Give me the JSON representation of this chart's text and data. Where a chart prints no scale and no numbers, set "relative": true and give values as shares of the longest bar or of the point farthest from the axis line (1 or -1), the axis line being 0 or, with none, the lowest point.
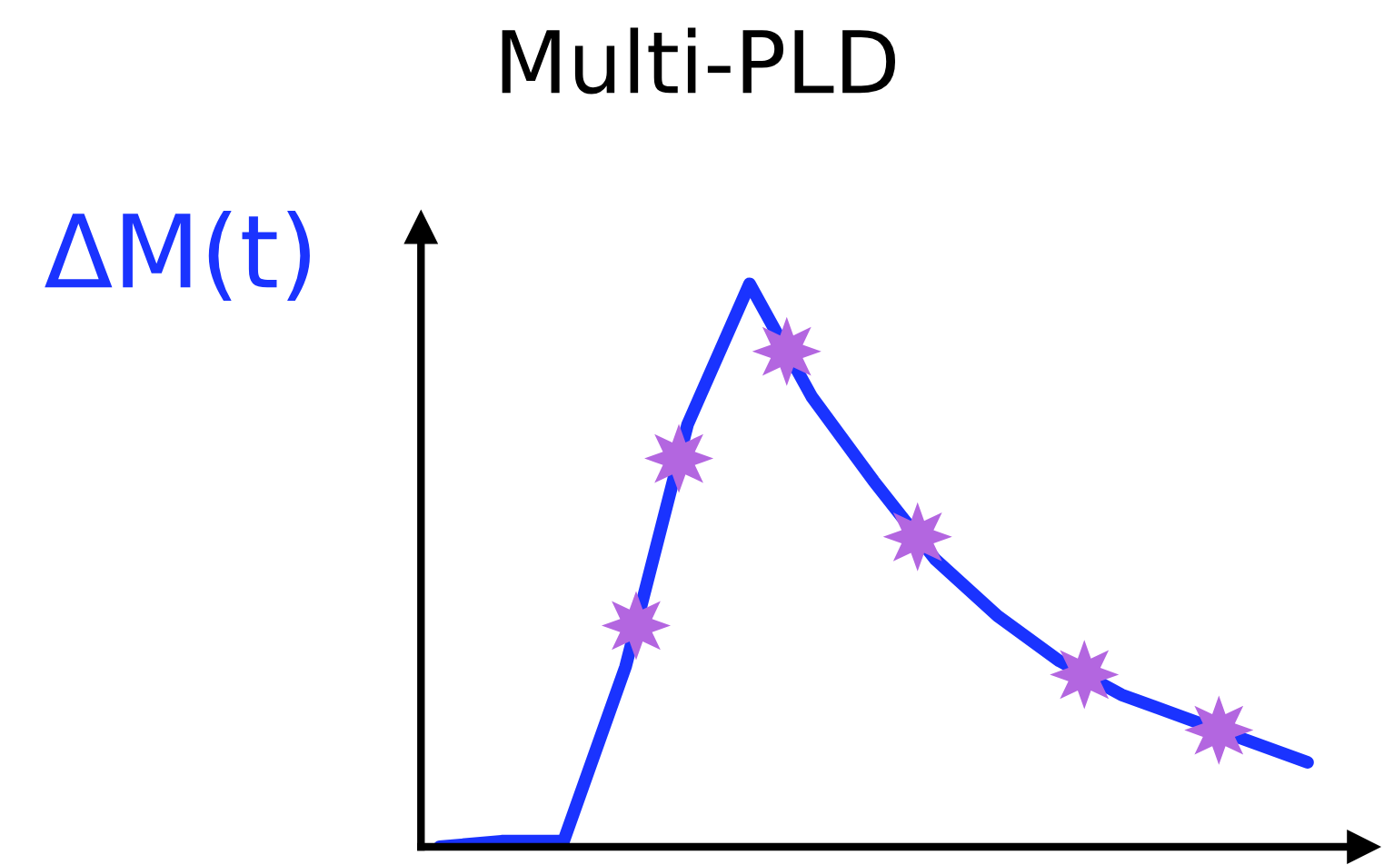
{
  "chart_data": {
    "type": "line",
    "title": "Multi-PLD",
    "ylabel": "ΔM(t)",
    "relative": true,
    "tick_labels": false,
    "categories": [
      null,
      null,
      null,
      null,
      null,
      null,
      null,
      null,
      null,
      null,
      null,
      null,
      null,
      null,
      null
    ],
    "series": [
      {
        "color": "#1a33ff",
        "values": [
          0,
          0.01,
          0.01,
          0.32,
          0.75,
          1.0,
          0.8,
          0.65,
          0.51,
          0.41,
          0.33,
          0.27,
          0.23,
          0.19,
          0.15
        ]
      }
    ]
  }
}
